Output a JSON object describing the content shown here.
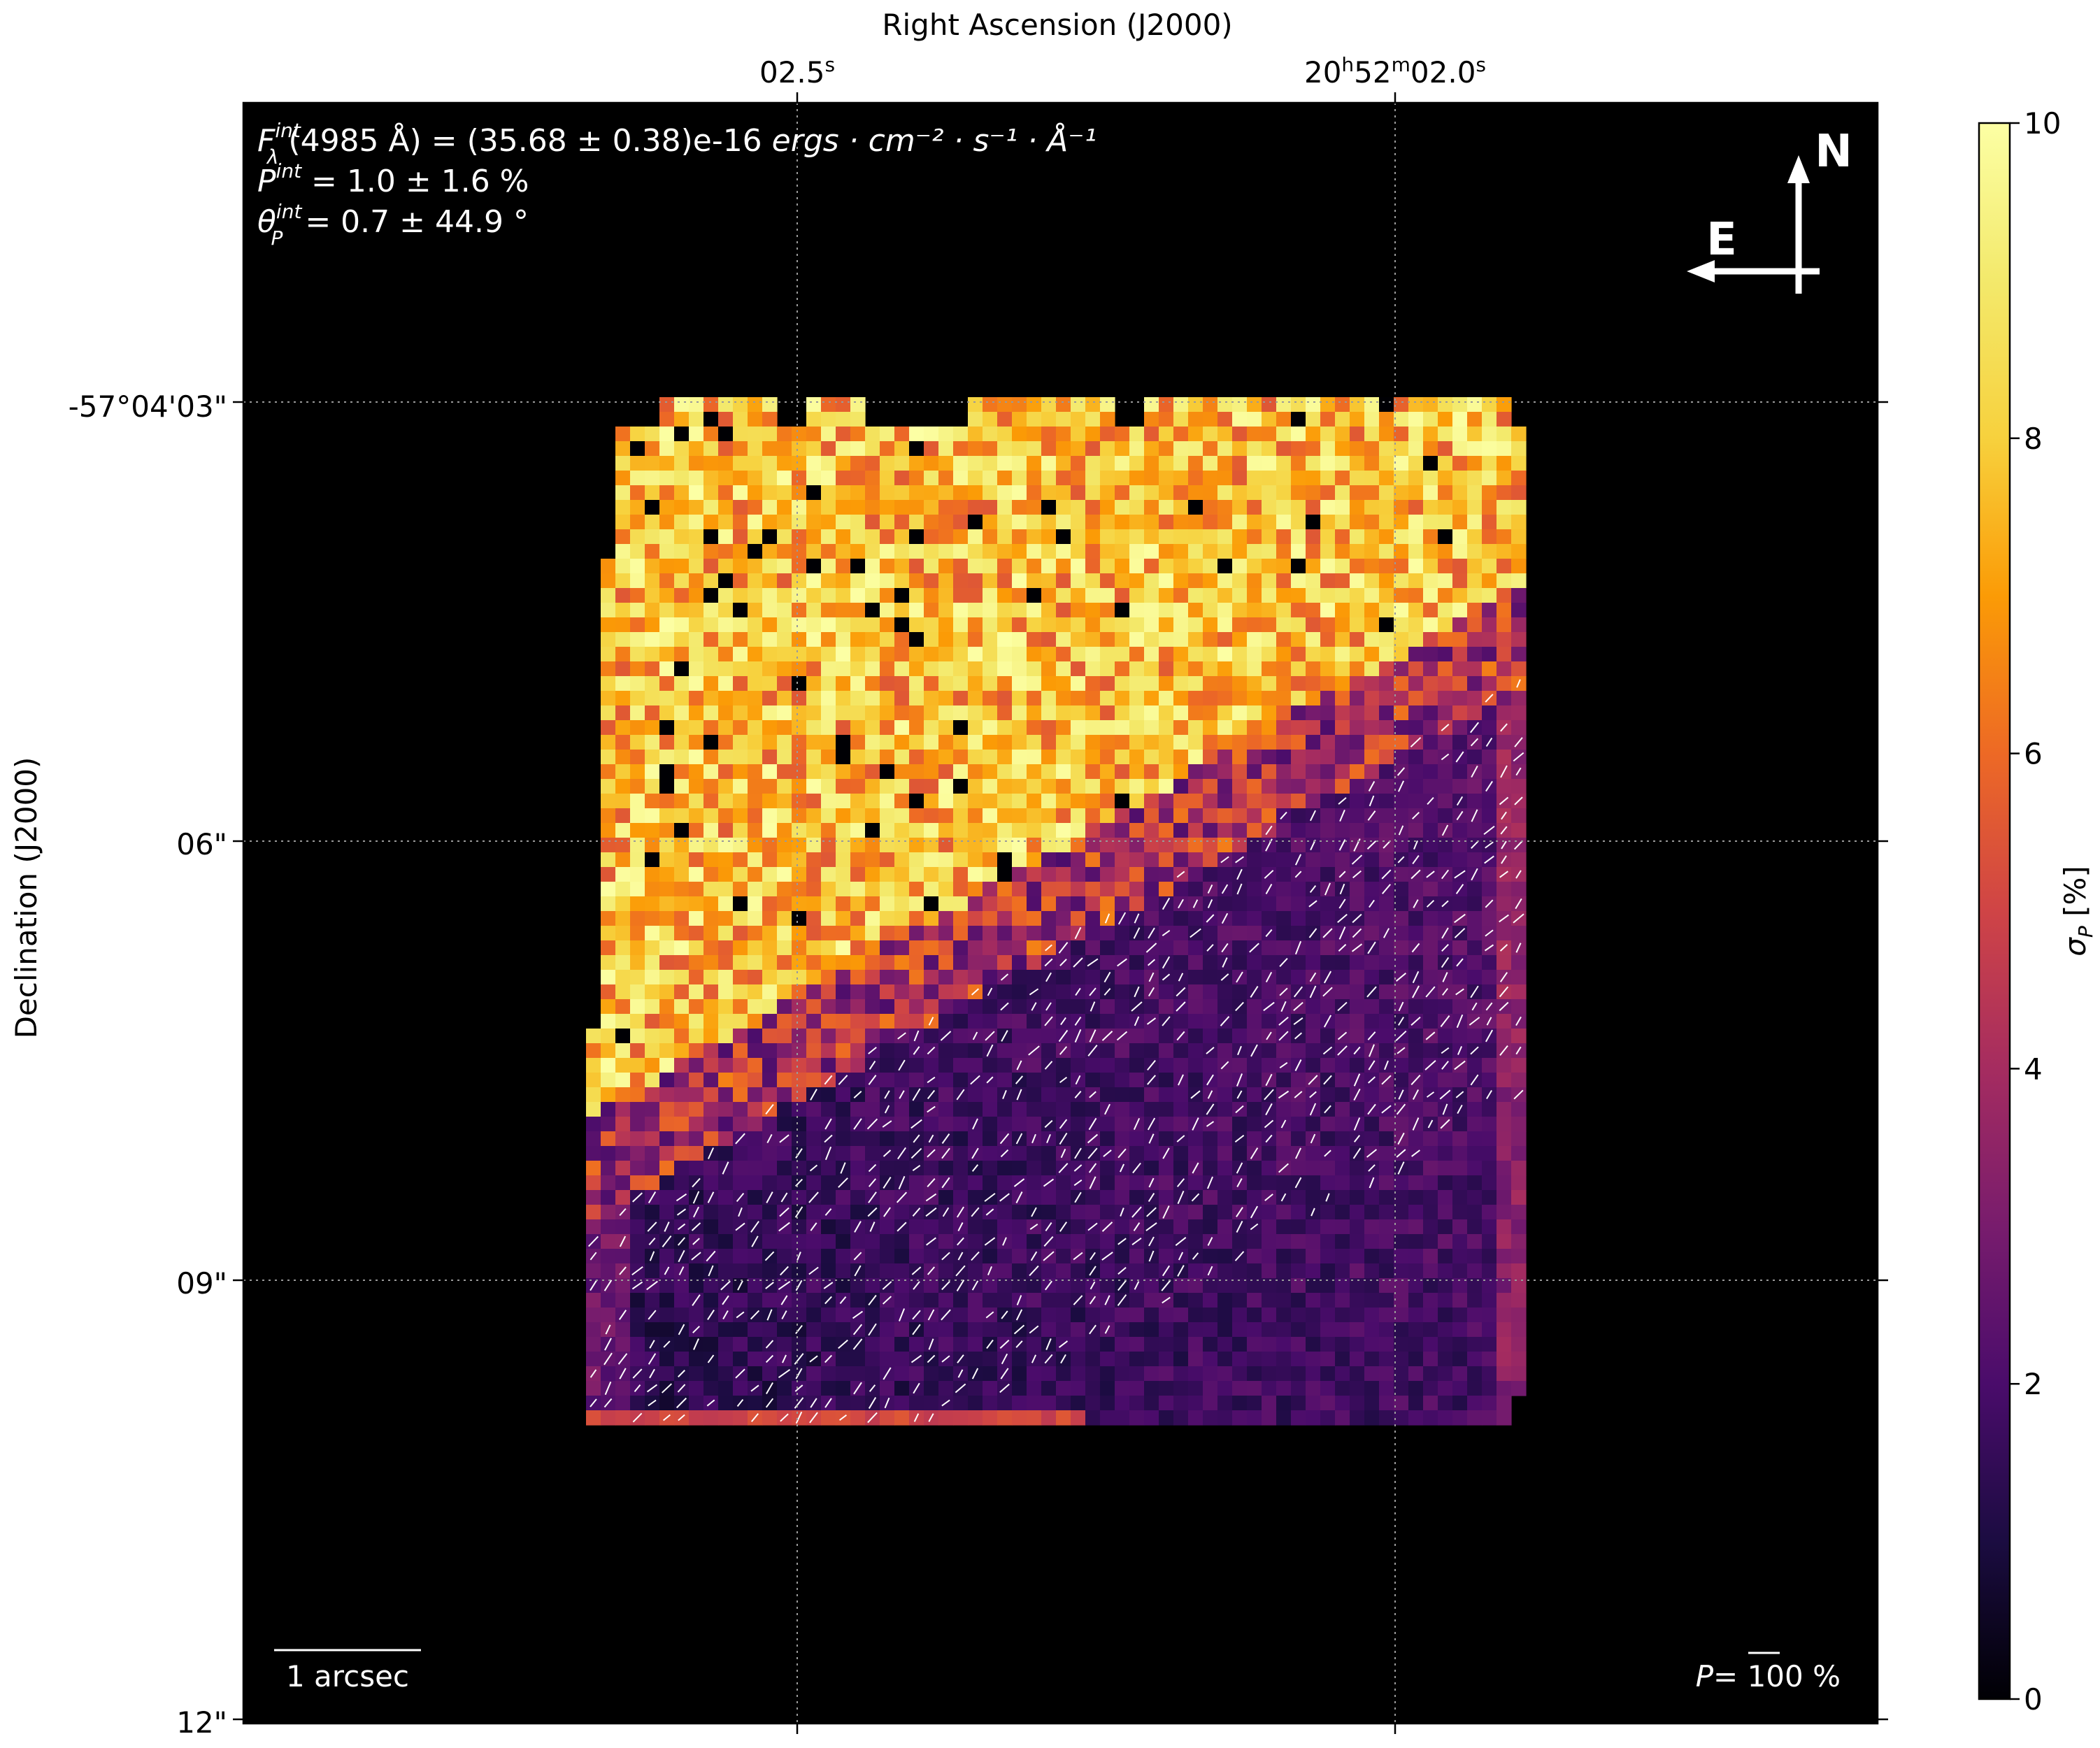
{
  "chart_data": {
    "type": "heatmap",
    "xlabel": "Right Ascension (J2000)",
    "ylabel": "Declination (J2000)",
    "x_ticks": [
      {
        "label": "02.5",
        "sup": "s"
      },
      {
        "label": "20",
        "sup": "h",
        "label2": "52",
        "sup2": "m",
        "label3": "02.0",
        "sup3": "s"
      }
    ],
    "y_ticks": [
      "-57°04'03\"",
      "06\"",
      "09\"",
      "12\""
    ],
    "colorbar": {
      "label_symbol": "σ",
      "label_sub": "P",
      "label_unit": " [%]",
      "min": 0,
      "max": 10,
      "ticks": [
        "0",
        "2",
        "4",
        "6",
        "8",
        "10"
      ],
      "colormap": "inferno"
    },
    "annotations": {
      "line1": {
        "sym": "F",
        "sup": "int",
        "sub": "λ",
        "text": "(4985 Å) = (35.68 ± 0.38)e-16 ",
        "units": "ergs · cm⁻² · s⁻¹ · Å⁻¹"
      },
      "line2": {
        "sym": "P",
        "sup": "int",
        "text": " = 1.0 ± 1.6 %"
      },
      "line3": {
        "sym": "θ",
        "sup": "int",
        "sub": "P",
        "text": " = 0.7 ± 44.9 °"
      }
    },
    "compass": {
      "north": "N",
      "east": "E"
    },
    "scalebar_label": "1 arcsec",
    "p_reference": {
      "sym": "P",
      "text": "= 100 %"
    },
    "data_summary": {
      "description_free": true,
      "upper_region_sigma_P_range": [
        5,
        10
      ],
      "lower_region_sigma_P_range": [
        0.5,
        3
      ],
      "map_extent_ra_dec": "approx. 7 × 7 arcsec"
    },
    "grid": true
  }
}
